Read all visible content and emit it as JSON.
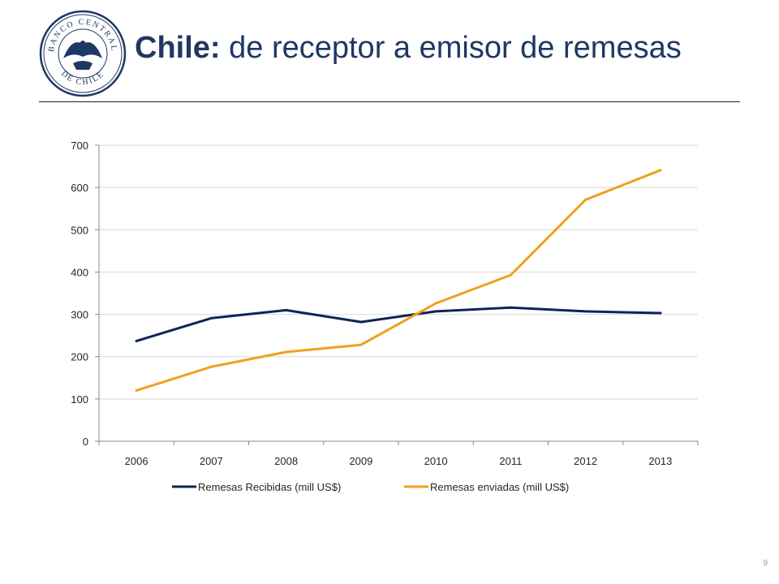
{
  "header": {
    "title_bold": "Chile:",
    "title_rest": " de receptor a emisor de remesas",
    "logo_text_top": "BANCO CENTRAL",
    "logo_text_bottom": "DE CHILE"
  },
  "colors": {
    "title": "#1f3864",
    "series_received": "#0d2456",
    "series_sent": "#f0a01e",
    "grid": "#d9d9d9",
    "axis_text": "#262626"
  },
  "chart_data": {
    "type": "line",
    "categories": [
      "2006",
      "2007",
      "2008",
      "2009",
      "2010",
      "2011",
      "2012",
      "2013"
    ],
    "series": [
      {
        "name": "Remesas Recibidas (mill US$)",
        "values": [
          237,
          291,
          310,
          282,
          307,
          316,
          307,
          303
        ]
      },
      {
        "name": "Remesas enviadas (mill US$)",
        "values": [
          120,
          176,
          211,
          228,
          326,
          393,
          571,
          641
        ]
      }
    ],
    "ylim": [
      0,
      700
    ],
    "yticks": [
      0,
      100,
      200,
      300,
      400,
      500,
      600,
      700
    ],
    "grid": true,
    "legend": "bottom"
  },
  "footer": {
    "page_number": "9"
  }
}
